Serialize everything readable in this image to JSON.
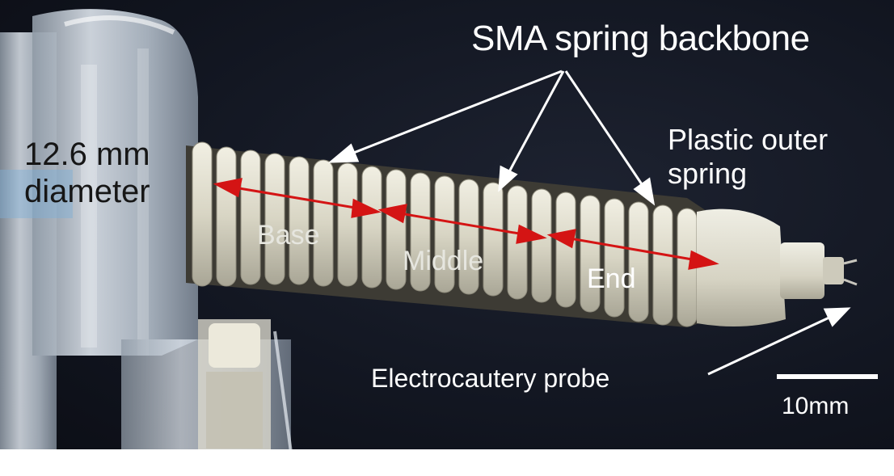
{
  "labels": {
    "title": "SMA spring backbone",
    "outer_spring": "Plastic outer spring",
    "diameter": "12.6 mm diameter",
    "base": "Base",
    "middle": "Middle",
    "end": "End",
    "probe": "Electrocautery probe",
    "scale": "10mm"
  },
  "colors": {
    "background": "#121621",
    "spring": "#e4e2d4",
    "arrow_red": "#d41414",
    "arrow_white": "#ffffff",
    "acrylic": "#c9d2dc"
  }
}
